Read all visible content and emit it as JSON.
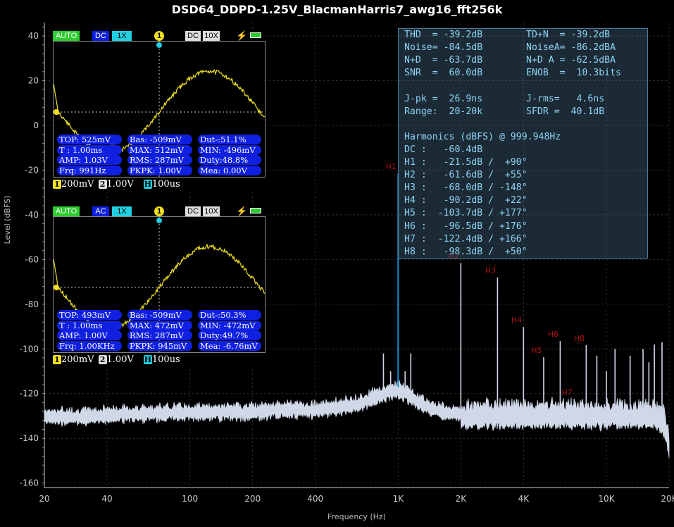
{
  "chart_data": {
    "type": "line",
    "title": "DSD64_DDPD-1.25V_BlacmanHarris7_awg16_fft256k",
    "xlabel": "Frequency (Hz)",
    "ylabel": "Level (dBFS)",
    "xscale": "log",
    "xlim": [
      20,
      20000
    ],
    "ylim": [
      -162,
      46
    ],
    "xticks": [
      {
        "v": 20,
        "label": "20"
      },
      {
        "v": 40,
        "label": "40"
      },
      {
        "v": 100,
        "label": "100"
      },
      {
        "v": 200,
        "label": "200"
      },
      {
        "v": 400,
        "label": "400"
      },
      {
        "v": 1000,
        "label": "1K"
      },
      {
        "v": 2000,
        "label": "2K"
      },
      {
        "v": 4000,
        "label": "4K"
      },
      {
        "v": 10000,
        "label": "10K"
      },
      {
        "v": 20000,
        "label": "20K"
      }
    ],
    "yticks": [
      40,
      20,
      0,
      -20,
      -40,
      -60,
      -80,
      -100,
      -120,
      -140,
      -160
    ],
    "grid": true,
    "noise_floor": [
      [
        20,
        -129
      ],
      [
        30,
        -129
      ],
      [
        50,
        -128
      ],
      [
        100,
        -127
      ],
      [
        200,
        -127
      ],
      [
        300,
        -126
      ],
      [
        400,
        -126
      ],
      [
        500,
        -125
      ],
      [
        600,
        -124
      ],
      [
        700,
        -122
      ],
      [
        800,
        -120
      ],
      [
        900,
        -118
      ],
      [
        1000,
        -117
      ],
      [
        1100,
        -119
      ],
      [
        1200,
        -121
      ],
      [
        1400,
        -125
      ],
      [
        1700,
        -127
      ],
      [
        2000,
        -128
      ],
      [
        5000,
        -128
      ],
      [
        10000,
        -128
      ],
      [
        17000,
        -128
      ],
      [
        19000,
        -131
      ],
      [
        20000,
        -142
      ]
    ],
    "peaks": [
      {
        "f": 999.948,
        "db": -21.5,
        "label": "H1",
        "highlight": true
      },
      {
        "f": 2000,
        "db": -61.6,
        "label": "H2"
      },
      {
        "f": 3000,
        "db": -68.0,
        "label": "H3"
      },
      {
        "f": 4000,
        "db": -90.2,
        "label": "H4"
      },
      {
        "f": 5000,
        "db": -103.7,
        "label": "H5"
      },
      {
        "f": 6000,
        "db": -96.5,
        "label": "H6"
      },
      {
        "f": 7000,
        "db": -122.4,
        "label": "H7"
      },
      {
        "f": 8000,
        "db": -98.3,
        "label": "H8"
      },
      {
        "f": 850,
        "db": -102
      },
      {
        "f": 920,
        "db": -110
      },
      {
        "f": 1080,
        "db": -110
      },
      {
        "f": 1150,
        "db": -102
      },
      {
        "f": 9000,
        "db": -103
      },
      {
        "f": 10000,
        "db": -110
      },
      {
        "f": 11000,
        "db": -100
      },
      {
        "f": 13000,
        "db": -103
      },
      {
        "f": 15000,
        "db": -100
      },
      {
        "f": 16000,
        "db": -106
      },
      {
        "f": 17000,
        "db": -98
      },
      {
        "f": 18500,
        "db": -97
      }
    ],
    "colors": {
      "curve": "#d0d8e8",
      "h1": "#1e90d8",
      "labels": "#b01010",
      "grid": "#2a2a2a",
      "axis": "#cccccc"
    }
  },
  "info": {
    "rows": [
      [
        "THD  = -39.2dB",
        "TD+N  = -39.2dB"
      ],
      [
        "Noise= -84.5dB",
        "NoiseA= -86.2dBA"
      ],
      [
        "N+D  = -63.7dB",
        "N+D A = -62.5dBA"
      ],
      [
        "SNR  =  60.0dB",
        "ENOB  =  10.3bits"
      ],
      [
        "",
        ""
      ],
      [
        "J-pk =  26.9ns",
        "J-rms=   4.6ns"
      ],
      [
        "Range:  20-20k",
        "SFDR =  40.1dB"
      ],
      [
        "",
        ""
      ],
      [
        "Harmonics (dBFS) @ 999.948Hz",
        ""
      ],
      [
        "DC :   -60.4dB",
        ""
      ],
      [
        "H1 :   -21.5dB /  +90°",
        ""
      ],
      [
        "H2 :   -61.6dB /  +55°",
        ""
      ],
      [
        "H3 :   -68.0dB / -148°",
        ""
      ],
      [
        "H4 :   -90.2dB /  +22°",
        ""
      ],
      [
        "H5 :  -103.7dB / +177°",
        ""
      ],
      [
        "H6 :   -96.5dB / +176°",
        ""
      ],
      [
        "H7 :  -122.4dB / +166°",
        ""
      ],
      [
        "H8 :   -98.3dB /  +50°",
        ""
      ]
    ]
  },
  "scopes": [
    {
      "mode": "AUTO",
      "coupling": "DC",
      "probe_ch1": "1X",
      "marker": "1",
      "trig_coupling": "DC",
      "probe_trig": "10X",
      "meas": [
        [
          "TOP: 525mV_",
          "Bas: -509mV",
          "Dut-:51.1%"
        ],
        [
          "T : 1.00ms",
          "MAX: 512mV",
          "MIN: -496mV"
        ],
        [
          "AMP: 1.03V",
          "RMS: 287mV",
          "Duty:48.8%"
        ],
        [
          "Frq: 991Hz",
          "PKPK: 1.00V",
          "Mea: 0.00V"
        ]
      ],
      "foot": {
        "ch1_num": "1",
        "ch1": "200mV",
        "ch2_num": "2",
        "ch2": "1.00V",
        "h": "H",
        "time": "100us"
      },
      "wave_offset": 0
    },
    {
      "mode": "AUTO",
      "coupling": "AC",
      "probe_ch1": "1X",
      "marker": "1",
      "trig_coupling": "DC",
      "probe_trig": "10X",
      "meas": [
        [
          "TOP: 493mV",
          "Bas: -509mV",
          "Dut-:50.3%"
        ],
        [
          "T : 1.00ms",
          "MAX: 472mV",
          "MIN: -472mV"
        ],
        [
          "AMP: 1.00V",
          "RMS: 287mV",
          "Duty:49.7%"
        ],
        [
          "Frq: 1.00KHz",
          "PKPK: 945mV",
          "Mea: -6.76mV"
        ]
      ],
      "foot": {
        "ch1_num": "1",
        "ch1": "200mV",
        "ch2_num": "2",
        "ch2": "1.00V",
        "h": "H",
        "time": "100us"
      },
      "wave_offset": 0
    }
  ]
}
